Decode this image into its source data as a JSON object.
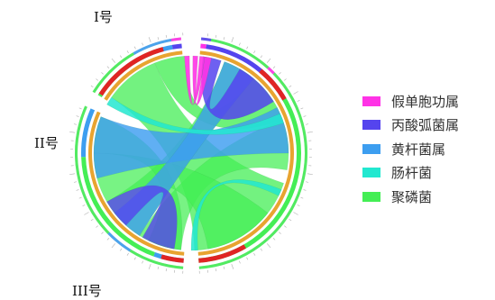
{
  "chart_data": {
    "type": "chord",
    "title": "",
    "groups": [
      {
        "label": "I号"
      },
      {
        "label": "II号"
      },
      {
        "label": "III号"
      }
    ],
    "legend": [
      {
        "name": "假单胞功属",
        "color": "#ff33e6"
      },
      {
        "name": "丙酸弧菌属",
        "color": "#5544ee"
      },
      {
        "name": "黄杆菌属",
        "color": "#3d9ef0"
      },
      {
        "name": "肠杆菌",
        "color": "#22e8d0"
      },
      {
        "name": "聚磷菌",
        "color": "#44ee55"
      }
    ],
    "ring_colors": {
      "inner": "#e8a430",
      "red": "#e02424",
      "track": "#cccccc"
    }
  }
}
